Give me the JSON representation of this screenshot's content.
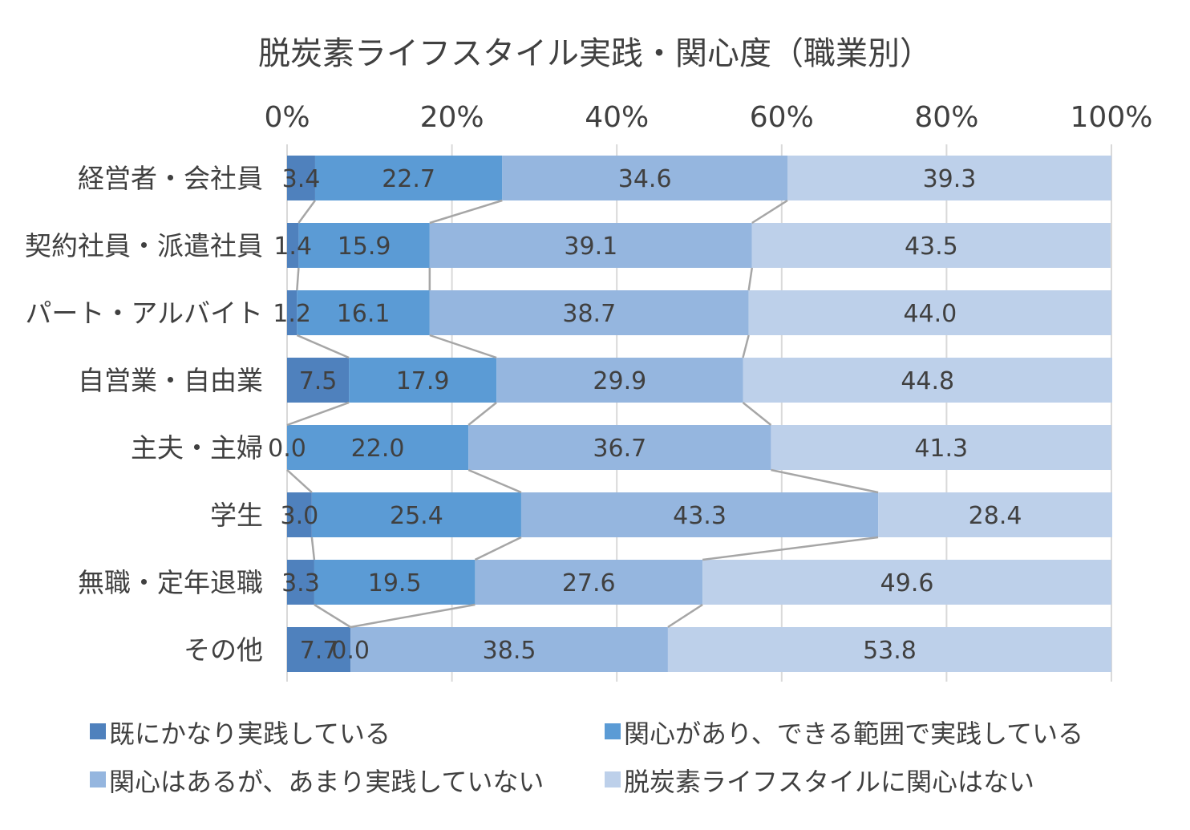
{
  "chart_data": {
    "type": "bar",
    "orientation": "horizontal",
    "stacking": "percent",
    "title": "脱炭素ライフスタイル実践・関心度（職業別）",
    "xlabel": "",
    "ylabel": "",
    "xlim": [
      0,
      100
    ],
    "x_ticks": [
      "0%",
      "20%",
      "40%",
      "60%",
      "80%",
      "100%"
    ],
    "x_tick_values": [
      0,
      20,
      40,
      60,
      80,
      100
    ],
    "grid": true,
    "series_lines": true,
    "legend_position": "bottom",
    "categories": [
      "経営者・会社員",
      "契約社員・派遣社員",
      "パート・アルバイト",
      "自営業・自由業",
      "主夫・主婦",
      "学生",
      "無職・定年退職",
      "その他"
    ],
    "series": [
      {
        "name": "既にかなり実践している",
        "color": "#4F81BD",
        "values": [
          3.4,
          1.4,
          1.2,
          7.5,
          0.0,
          3.0,
          3.3,
          7.7
        ],
        "labels": [
          "3.4",
          "1.4",
          "1.2",
          "7.5",
          "0.0",
          "3.0",
          "3.3",
          "7.7"
        ]
      },
      {
        "name": "関心があり、できる範囲で実践している",
        "color": "#5B9BD5",
        "values": [
          22.7,
          15.9,
          16.1,
          17.9,
          22.0,
          25.4,
          19.5,
          0.0
        ],
        "labels": [
          "22.7",
          "15.9",
          "16.1",
          "17.9",
          "22.0",
          "25.4",
          "19.5",
          "0.0"
        ]
      },
      {
        "name": "関心はあるが、あまり実践していない",
        "color": "#95B6DF",
        "values": [
          34.6,
          39.1,
          38.7,
          29.9,
          36.7,
          43.3,
          27.6,
          38.5
        ],
        "labels": [
          "34.6",
          "39.1",
          "38.7",
          "29.9",
          "36.7",
          "43.3",
          "27.6",
          "38.5"
        ]
      },
      {
        "name": "脱炭素ライフスタイルに関心はない",
        "color": "#BDD0EA",
        "values": [
          39.3,
          43.5,
          44.0,
          44.8,
          41.3,
          28.4,
          49.6,
          53.8
        ],
        "labels": [
          "39.3",
          "43.5",
          "44.0",
          "44.8",
          "41.3",
          "28.4",
          "49.6",
          "53.8"
        ]
      }
    ]
  }
}
